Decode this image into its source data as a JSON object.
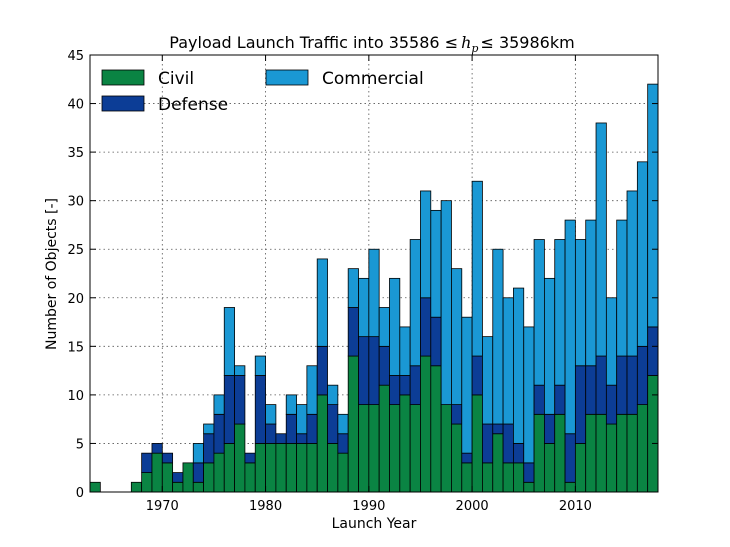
{
  "chart_data": {
    "type": "bar",
    "stacked": true,
    "title_parts": {
      "prefix": "Payload Launch Traffic into 35586 ",
      "le1": "≤",
      "var": "h",
      "sub": "p",
      "le2": "≤",
      "suffix": " 35986km"
    },
    "xlabel": "Launch Year",
    "ylabel": "Number of Objects [-]",
    "xlim": [
      1963,
      2018
    ],
    "ylim": [
      0,
      45
    ],
    "xticks": [
      1970,
      1980,
      1990,
      2000,
      2010
    ],
    "yticks": [
      0,
      5,
      10,
      15,
      20,
      25,
      30,
      35,
      40,
      45
    ],
    "grid": true,
    "legend_position": "top-left",
    "years": [
      1963,
      1964,
      1965,
      1966,
      1967,
      1968,
      1969,
      1970,
      1971,
      1972,
      1973,
      1974,
      1975,
      1976,
      1977,
      1978,
      1979,
      1980,
      1981,
      1982,
      1983,
      1984,
      1985,
      1986,
      1987,
      1988,
      1989,
      1990,
      1991,
      1992,
      1993,
      1994,
      1995,
      1996,
      1997,
      1998,
      1999,
      2000,
      2001,
      2002,
      2003,
      2004,
      2005,
      2006,
      2007,
      2008,
      2009,
      2010,
      2011,
      2012,
      2013,
      2014,
      2015,
      2016,
      2017
    ],
    "series": [
      {
        "name": "Civil",
        "color": "#0a8443",
        "values": [
          1,
          0,
          0,
          0,
          1,
          2,
          4,
          3,
          1,
          3,
          1,
          3,
          4,
          5,
          7,
          3,
          5,
          5,
          5,
          5,
          5,
          5,
          10,
          5,
          4,
          14,
          9,
          9,
          11,
          9,
          10,
          9,
          14,
          13,
          9,
          7,
          3,
          10,
          3,
          6,
          3,
          3,
          1,
          8,
          5,
          8,
          1,
          5,
          8,
          8,
          7,
          8,
          8,
          9,
          12
        ]
      },
      {
        "name": "Defense",
        "color": "#0c3d96",
        "values": [
          0,
          0,
          0,
          0,
          0,
          2,
          1,
          1,
          1,
          0,
          2,
          3,
          4,
          7,
          5,
          1,
          7,
          2,
          1,
          3,
          1,
          3,
          5,
          4,
          2,
          5,
          7,
          7,
          4,
          3,
          2,
          4,
          6,
          5,
          0,
          2,
          1,
          4,
          4,
          1,
          4,
          2,
          2,
          3,
          3,
          3,
          5,
          8,
          5,
          6,
          4,
          6,
          6,
          6,
          5
        ]
      },
      {
        "name": "Commercial",
        "color": "#1a98d4",
        "values": [
          0,
          0,
          0,
          0,
          0,
          0,
          0,
          0,
          0,
          0,
          2,
          1,
          2,
          7,
          1,
          0,
          2,
          2,
          0,
          2,
          3,
          5,
          9,
          2,
          2,
          4,
          6,
          9,
          4,
          10,
          5,
          13,
          11,
          11,
          21,
          14,
          14,
          18,
          9,
          18,
          13,
          16,
          14,
          15,
          14,
          15,
          22,
          13,
          15,
          24,
          9,
          14,
          17,
          19,
          25
        ]
      }
    ],
    "legend_entries": [
      "Civil",
      "Defense",
      "Commercial"
    ]
  }
}
